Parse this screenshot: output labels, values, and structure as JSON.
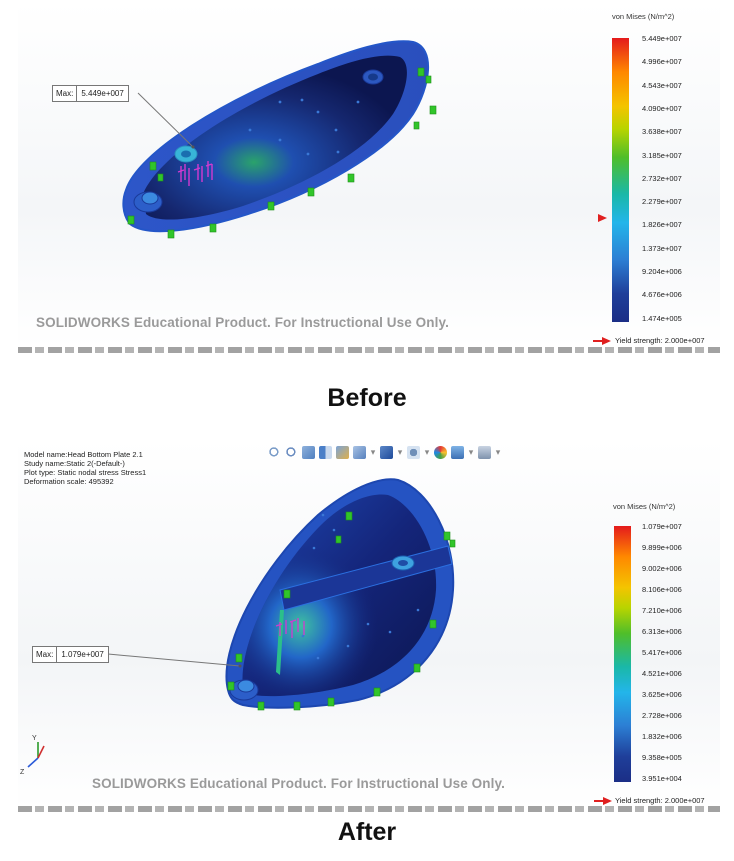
{
  "before": {
    "caption": "Before",
    "watermark": "SOLIDWORKS Educational Product. For Instructional Use Only.",
    "legend_title": "von Mises (N/m^2)",
    "ticks": [
      "5.449e+007",
      "4.996e+007",
      "4.543e+007",
      "4.090e+007",
      "3.638e+007",
      "3.185e+007",
      "2.732e+007",
      "2.279e+007",
      "1.826e+007",
      "1.373e+007",
      "9.204e+006",
      "4.676e+006",
      "1.474e+005"
    ],
    "yield": "Yield strength: 2.000e+007",
    "max_label": "Max:",
    "max_value": "5.449e+007"
  },
  "after": {
    "caption": "After",
    "watermark": "SOLIDWORKS Educational Product. For Instructional Use Only.",
    "legend_title": "von Mises (N/m^2)",
    "ticks": [
      "1.079e+007",
      "9.899e+006",
      "9.002e+006",
      "8.106e+006",
      "7.210e+006",
      "6.313e+006",
      "5.417e+006",
      "4.521e+006",
      "3.625e+006",
      "2.728e+006",
      "1.832e+006",
      "9.358e+005",
      "3.951e+004"
    ],
    "yield": "Yield strength: 2.000e+007",
    "max_label": "Max:",
    "max_value": "1.079e+007",
    "info": {
      "model": "Model name:Head Bottom Plate 2.1",
      "study": "Study name:Static 2(-Default-)",
      "plot": "Plot type: Static nodal stress Stress1",
      "deformation": "Deformation scale: 495392"
    },
    "toolbar_icons": [
      "zoom-to-fit-icon",
      "zoom-area-icon",
      "previous-view-icon",
      "section-view-icon",
      "dynamic-annotation-icon",
      "view-orientation-icon",
      "display-style-icon",
      "hide-show-icon",
      "edit-appearance-icon",
      "apply-scene-icon",
      "view-settings-icon"
    ]
  },
  "colors": {
    "arrow": "#e02020",
    "fill_dark": "#14206e",
    "fill_mid": "#2a57c8",
    "fixture": "#31c52a",
    "load": "#d23ad0"
  }
}
